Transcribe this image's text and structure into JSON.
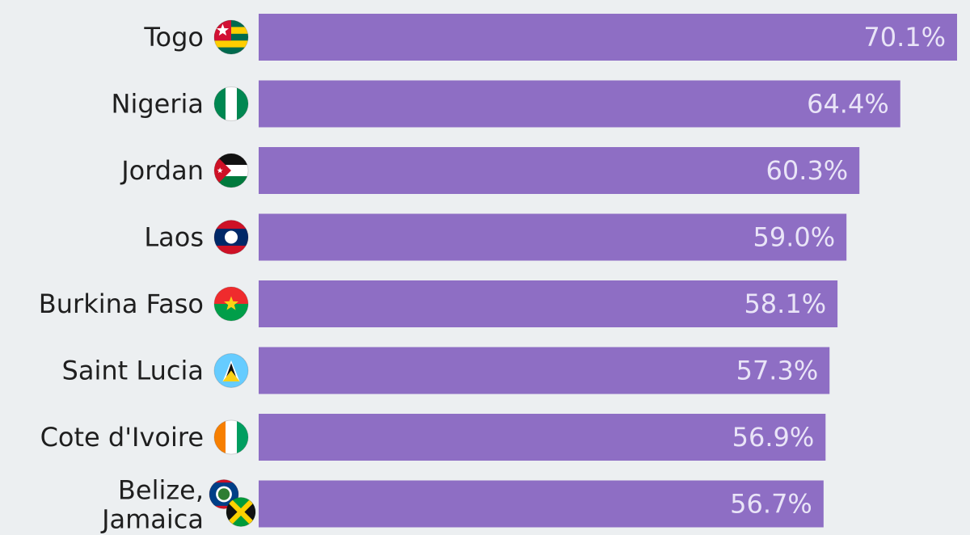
{
  "chart_data": {
    "type": "bar",
    "orientation": "horizontal",
    "categories": [
      "Togo",
      "Nigeria",
      "Jordan",
      "Laos",
      "Burkina Faso",
      "Saint Lucia",
      "Cote d'Ivoire",
      "Belize, Jamaica"
    ],
    "values": [
      70.1,
      64.4,
      60.3,
      59.0,
      58.1,
      57.3,
      56.9,
      56.7
    ],
    "value_labels": [
      "70.1%",
      "64.4%",
      "60.3%",
      "59.0%",
      "58.1%",
      "57.3%",
      "56.9%",
      "56.7%"
    ],
    "xlim": [
      0,
      70.1
    ],
    "grid": false,
    "bar_color": "#8e6ec4",
    "icons": [
      [
        "togo-flag-icon"
      ],
      [
        "nigeria-flag-icon"
      ],
      [
        "jordan-flag-icon"
      ],
      [
        "laos-flag-icon"
      ],
      [
        "burkina-faso-flag-icon"
      ],
      [
        "saint-lucia-flag-icon"
      ],
      [
        "cote-divoire-flag-icon"
      ],
      [
        "belize-flag-icon",
        "jamaica-flag-icon"
      ]
    ]
  }
}
